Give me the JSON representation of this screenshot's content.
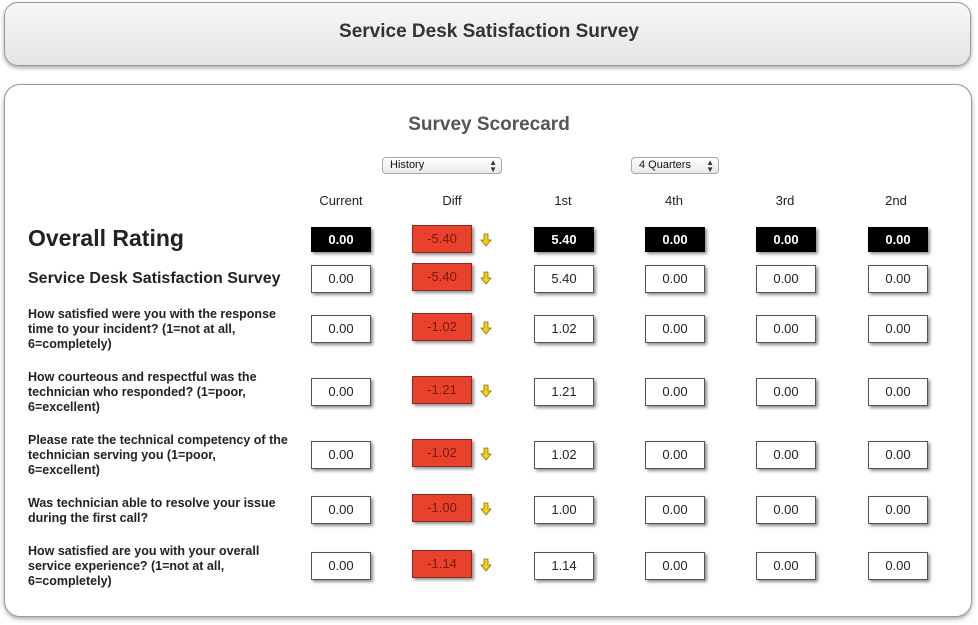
{
  "header": {
    "title": "Service Desk Satisfaction Survey"
  },
  "scorecard": {
    "title": "Survey Scorecard",
    "history_select": "History",
    "quarters_select": "4 Quarters",
    "columns": [
      "Current",
      "Diff",
      "1st",
      "4th",
      "3rd",
      "2nd"
    ],
    "rows": [
      {
        "label": "Overall Rating",
        "values": [
          "0.00",
          "-5.40",
          "5.40",
          "0.00",
          "0.00",
          "0.00"
        ]
      },
      {
        "label": "Service Desk Satisfaction Survey",
        "values": [
          "0.00",
          "-5.40",
          "5.40",
          "0.00",
          "0.00",
          "0.00"
        ]
      },
      {
        "label": "How satisfied were you with the response time to your incident? (1=not at all, 6=completely)",
        "values": [
          "0.00",
          "-1.02",
          "1.02",
          "0.00",
          "0.00",
          "0.00"
        ]
      },
      {
        "label": "How courteous and respectful was the technician who responded? (1=poor, 6=excellent)",
        "values": [
          "0.00",
          "-1.21",
          "1.21",
          "0.00",
          "0.00",
          "0.00"
        ]
      },
      {
        "label": "Please rate the technical competency of the technician serving you (1=poor, 6=excellent)",
        "values": [
          "0.00",
          "-1.02",
          "1.02",
          "0.00",
          "0.00",
          "0.00"
        ]
      },
      {
        "label": "Was technician able to resolve your issue during the first call?",
        "values": [
          "0.00",
          "-1.00",
          "1.00",
          "0.00",
          "0.00",
          "0.00"
        ]
      },
      {
        "label": "How satisfied are you with your overall service experience? (1=not at all, 6=completely)",
        "values": [
          "0.00",
          "-1.14",
          "1.14",
          "0.00",
          "0.00",
          "0.00"
        ]
      }
    ]
  },
  "colors": {
    "diff_negative": "#e8412c",
    "arrow": "#f2d11b",
    "overall_cell": "#000000"
  },
  "icons": {
    "diff_trend": "arrow-down-icon",
    "select": "select-arrows-icon"
  }
}
